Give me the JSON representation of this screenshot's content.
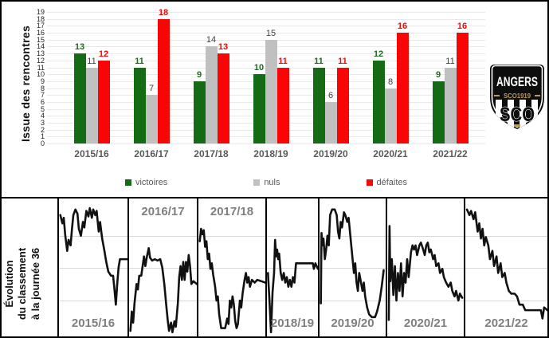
{
  "chart_data": [
    {
      "type": "bar",
      "title": "Issue des rencontres",
      "categories": [
        "2015/16",
        "2016/17",
        "2017/18",
        "2018/19",
        "2019/20",
        "2020/21",
        "2021/22"
      ],
      "series": [
        {
          "name": "victoires",
          "color": "#146b14",
          "label_color": "#1e6b1e",
          "label_bold": true,
          "values": [
            13,
            11,
            9,
            10,
            11,
            12,
            9
          ]
        },
        {
          "name": "nuls",
          "color": "#c0c0c0",
          "label_color": "#404040",
          "label_bold": false,
          "values": [
            11,
            7,
            14,
            15,
            6,
            8,
            11
          ]
        },
        {
          "name": "défaites",
          "color": "#fa0505",
          "label_color": "#fa0505",
          "label_bold": true,
          "values": [
            12,
            18,
            13,
            11,
            11,
            16,
            16
          ]
        }
      ],
      "ylim": [
        0,
        19
      ],
      "ytick_step": 1,
      "ytick_labels": [
        0,
        1,
        2,
        3,
        4,
        5,
        6,
        7,
        8,
        9,
        10,
        11,
        12,
        13,
        14,
        15,
        16,
        17,
        18,
        19
      ],
      "grid": true,
      "legend_position": "bottom",
      "legend_entries": [
        "victoires",
        "nuls",
        "défaites"
      ]
    },
    {
      "type": "line",
      "title": "Évolution du classement à la journée 36",
      "line_color": "#111111",
      "panels": [
        {
          "season": "2015/16",
          "label_pos": "bottom",
          "points": [
            [
              2,
              12
            ],
            [
              5,
              18
            ],
            [
              7,
              14
            ],
            [
              9,
              26
            ],
            [
              12,
              38
            ],
            [
              14,
              30
            ],
            [
              17,
              34
            ],
            [
              19,
              22
            ],
            [
              21,
              12
            ],
            [
              24,
              8
            ],
            [
              27,
              11
            ],
            [
              29,
              22
            ],
            [
              32,
              27
            ],
            [
              35,
              17
            ],
            [
              37,
              21
            ],
            [
              40,
              9
            ],
            [
              43,
              13
            ],
            [
              45,
              7
            ],
            [
              48,
              14
            ],
            [
              50,
              8
            ],
            [
              53,
              12
            ],
            [
              55,
              9
            ],
            [
              58,
              24
            ],
            [
              60,
              17
            ],
            [
              63,
              29
            ],
            [
              66,
              37
            ],
            [
              69,
              46
            ],
            [
              72,
              53
            ],
            [
              76,
              56
            ],
            [
              79,
              56
            ],
            [
              81,
              66
            ],
            [
              83,
              77
            ],
            [
              85,
              62
            ],
            [
              87,
              50
            ],
            [
              89,
              44
            ],
            [
              93,
              44
            ],
            [
              100,
              44
            ]
          ]
        },
        {
          "season": "2016/17",
          "label_pos": "top",
          "points": [
            [
              2,
              96
            ],
            [
              4,
              82
            ],
            [
              6,
              90
            ],
            [
              8,
              76
            ],
            [
              11,
              62
            ],
            [
              13,
              66
            ],
            [
              15,
              56
            ],
            [
              18,
              56
            ],
            [
              20,
              49
            ],
            [
              22,
              42
            ],
            [
              24,
              49
            ],
            [
              26,
              43
            ],
            [
              29,
              36
            ],
            [
              31,
              43
            ],
            [
              34,
              45
            ],
            [
              38,
              44
            ],
            [
              42,
              45
            ],
            [
              46,
              44
            ],
            [
              49,
              50
            ],
            [
              52,
              62
            ],
            [
              55,
              78
            ],
            [
              57,
              88
            ],
            [
              59,
              96
            ],
            [
              62,
              90
            ],
            [
              64,
              97
            ],
            [
              67,
              89
            ],
            [
              69,
              93
            ],
            [
              72,
              76
            ],
            [
              74,
              57
            ],
            [
              76,
              49
            ],
            [
              78,
              59
            ],
            [
              80,
              46
            ],
            [
              82,
              59
            ],
            [
              84,
              46
            ],
            [
              86,
              53
            ],
            [
              88,
              41
            ],
            [
              90,
              49
            ],
            [
              92,
              62
            ],
            [
              95,
              60
            ],
            [
              100,
              62
            ]
          ]
        },
        {
          "season": "2017/18",
          "label_pos": "top",
          "points": [
            [
              2,
              31
            ],
            [
              4,
              22
            ],
            [
              6,
              26
            ],
            [
              8,
              23
            ],
            [
              10,
              35
            ],
            [
              12,
              31
            ],
            [
              14,
              44
            ],
            [
              16,
              40
            ],
            [
              18,
              51
            ],
            [
              20,
              47
            ],
            [
              22,
              55
            ],
            [
              25,
              64
            ],
            [
              27,
              74
            ],
            [
              29,
              71
            ],
            [
              31,
              84
            ],
            [
              34,
              94
            ],
            [
              40,
              94
            ],
            [
              43,
              87
            ],
            [
              45,
              91
            ],
            [
              47,
              74
            ],
            [
              49,
              79
            ],
            [
              51,
              71
            ],
            [
              53,
              77
            ],
            [
              55,
              89
            ],
            [
              57,
              94
            ],
            [
              59,
              91
            ],
            [
              62,
              74
            ],
            [
              64,
              79
            ],
            [
              66,
              69
            ],
            [
              69,
              59
            ],
            [
              71,
              54
            ],
            [
              73,
              61
            ],
            [
              75,
              57
            ],
            [
              77,
              64
            ],
            [
              80,
              59
            ],
            [
              84,
              61
            ],
            [
              88,
              59
            ],
            [
              100,
              61
            ]
          ]
        },
        {
          "season": "2018/19",
          "label_pos": "bottom",
          "points": [
            [
              2,
              54
            ],
            [
              5,
              74
            ],
            [
              8,
              97
            ],
            [
              11,
              68
            ],
            [
              14,
              54
            ],
            [
              16,
              30
            ],
            [
              18,
              42
            ],
            [
              20,
              37
            ],
            [
              22,
              44
            ],
            [
              24,
              40
            ],
            [
              27,
              54
            ],
            [
              30,
              59
            ],
            [
              33,
              54
            ],
            [
              36,
              61
            ],
            [
              39,
              57
            ],
            [
              42,
              64
            ],
            [
              45,
              59
            ],
            [
              48,
              64
            ],
            [
              51,
              57
            ],
            [
              54,
              61
            ],
            [
              57,
              47
            ],
            [
              62,
              47
            ],
            [
              75,
              47
            ],
            [
              90,
              47
            ],
            [
              92,
              51
            ],
            [
              95,
              47
            ],
            [
              100,
              51
            ]
          ]
        },
        {
          "season": "2019/20",
          "label_pos": "bottom",
          "points": [
            [
              2,
              76
            ],
            [
              3,
              25
            ],
            [
              4,
              34
            ],
            [
              6,
              29
            ],
            [
              8,
              44
            ],
            [
              10,
              37
            ],
            [
              12,
              27
            ],
            [
              14,
              34
            ],
            [
              16,
              12
            ],
            [
              19,
              8
            ],
            [
              23,
              8
            ],
            [
              26,
              12
            ],
            [
              28,
              24
            ],
            [
              30,
              29
            ],
            [
              32,
              17
            ],
            [
              34,
              21
            ],
            [
              37,
              10
            ],
            [
              39,
              12
            ],
            [
              42,
              17
            ],
            [
              44,
              14
            ],
            [
              47,
              29
            ],
            [
              49,
              39
            ],
            [
              52,
              54
            ],
            [
              54,
              47
            ],
            [
              56,
              61
            ],
            [
              58,
              67
            ],
            [
              60,
              54
            ],
            [
              62,
              59
            ],
            [
              65,
              67
            ],
            [
              67,
              61
            ],
            [
              69,
              71
            ],
            [
              72,
              79
            ],
            [
              75,
              84
            ],
            [
              79,
              86
            ],
            [
              84,
              86
            ],
            [
              87,
              82
            ],
            [
              91,
              74
            ],
            [
              94,
              64
            ],
            [
              97,
              52
            ]
          ]
        },
        {
          "season": "2020/21",
          "label_pos": "bottom",
          "points": [
            [
              2,
              88
            ],
            [
              3,
              20
            ],
            [
              4,
              60
            ],
            [
              6,
              44
            ],
            [
              8,
              70
            ],
            [
              10,
              49
            ],
            [
              12,
              74
            ],
            [
              14,
              54
            ],
            [
              16,
              67
            ],
            [
              18,
              47
            ],
            [
              20,
              71
            ],
            [
              22,
              54
            ],
            [
              24,
              61
            ],
            [
              26,
              44
            ],
            [
              28,
              57
            ],
            [
              31,
              39
            ],
            [
              33,
              34
            ],
            [
              35,
              37
            ],
            [
              37,
              34
            ],
            [
              39,
              41
            ],
            [
              42,
              34
            ],
            [
              44,
              32
            ],
            [
              47,
              37
            ],
            [
              49,
              41
            ],
            [
              51,
              34
            ],
            [
              53,
              32
            ],
            [
              55,
              39
            ],
            [
              57,
              37
            ],
            [
              60,
              44
            ],
            [
              62,
              41
            ],
            [
              64,
              49
            ],
            [
              67,
              47
            ],
            [
              69,
              54
            ],
            [
              72,
              51
            ],
            [
              74,
              57
            ],
            [
              77,
              61
            ],
            [
              80,
              64
            ],
            [
              83,
              61
            ],
            [
              85,
              67
            ],
            [
              88,
              71
            ],
            [
              90,
              67
            ],
            [
              93,
              74
            ],
            [
              95,
              69
            ],
            [
              98,
              72
            ]
          ]
        },
        {
          "season": "2021/22",
          "label_pos": "bottom",
          "points": [
            [
              2,
              8
            ],
            [
              5,
              12
            ],
            [
              7,
              9
            ],
            [
              10,
              15
            ],
            [
              12,
              10
            ],
            [
              15,
              24
            ],
            [
              17,
              18
            ],
            [
              19,
              29
            ],
            [
              21,
              22
            ],
            [
              23,
              34
            ],
            [
              25,
              28
            ],
            [
              28,
              34
            ],
            [
              30,
              44
            ],
            [
              33,
              38
            ],
            [
              35,
              49
            ],
            [
              38,
              42
            ],
            [
              40,
              54
            ],
            [
              43,
              47
            ],
            [
              45,
              57
            ],
            [
              48,
              54
            ],
            [
              50,
              61
            ],
            [
              53,
              67
            ],
            [
              56,
              69
            ],
            [
              60,
              69
            ],
            [
              63,
              71
            ],
            [
              66,
              77
            ],
            [
              70,
              77
            ],
            [
              73,
              81
            ],
            [
              78,
              81
            ],
            [
              88,
              81
            ],
            [
              92,
              81
            ],
            [
              94,
              87
            ],
            [
              96,
              79
            ],
            [
              100,
              81
            ]
          ]
        }
      ]
    }
  ],
  "left_titles": {
    "top": "Issue des rencontres",
    "bottom_lines": [
      "Évolution",
      "du classement",
      "à la journée 36"
    ]
  },
  "logo": {
    "club": "ANGERS",
    "band": "SCO1919",
    "initials": "SCO"
  },
  "colors": {
    "victoires": "#146b14",
    "nuls": "#c0c0c0",
    "defaites": "#fa0505",
    "grid": "#e9e9e9",
    "season_label": "#595959",
    "panel_label": "#7f7f7f",
    "line": "#111111"
  }
}
